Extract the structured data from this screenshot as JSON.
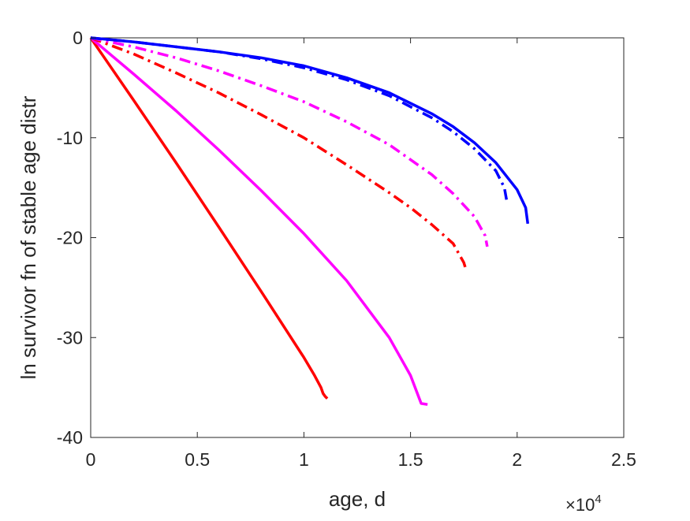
{
  "chart_data": {
    "type": "line",
    "title": "",
    "xlabel": "age, d",
    "ylabel": "ln survivor fn of stable age distr",
    "x_exponent_label": "×10",
    "x_exponent_power": "4",
    "xlim": [
      0,
      25000
    ],
    "ylim": [
      -40,
      0
    ],
    "xticks": [
      0,
      5000,
      10000,
      15000,
      20000,
      25000
    ],
    "xtick_labels": [
      "0",
      "0.5",
      "1",
      "1.5",
      "2",
      "2.5"
    ],
    "yticks": [
      0,
      -10,
      -20,
      -30,
      -40
    ],
    "ytick_labels": [
      "0",
      "-10",
      "-20",
      "-30",
      "-40"
    ],
    "grid": false,
    "legend": "none",
    "series": [
      {
        "color": "#ff0000",
        "style": "solid",
        "points": [
          [
            0,
            0
          ],
          [
            2000,
            -6.2
          ],
          [
            4000,
            -12.5
          ],
          [
            6000,
            -18.9
          ],
          [
            8000,
            -25.4
          ],
          [
            10000,
            -32.0
          ],
          [
            10500,
            -33.8
          ],
          [
            10800,
            -35.0
          ],
          [
            10900,
            -35.6
          ],
          [
            11000,
            -35.9
          ],
          [
            11100,
            -36.1
          ]
        ]
      },
      {
        "color": "#ff00ff",
        "style": "solid",
        "points": [
          [
            0,
            0
          ],
          [
            2000,
            -3.6
          ],
          [
            4000,
            -7.3
          ],
          [
            6000,
            -11.2
          ],
          [
            8000,
            -15.3
          ],
          [
            10000,
            -19.6
          ],
          [
            12000,
            -24.3
          ],
          [
            14000,
            -30.0
          ],
          [
            15000,
            -33.8
          ],
          [
            15500,
            -36.6
          ],
          [
            15800,
            -36.7
          ]
        ]
      },
      {
        "color": "#ff0000",
        "style": "dashdot",
        "points": [
          [
            0,
            0
          ],
          [
            2000,
            -1.6
          ],
          [
            4000,
            -3.5
          ],
          [
            6000,
            -5.5
          ],
          [
            8000,
            -7.7
          ],
          [
            10000,
            -10.0
          ],
          [
            12000,
            -12.7
          ],
          [
            14000,
            -15.5
          ],
          [
            15000,
            -17.0
          ],
          [
            16000,
            -18.7
          ],
          [
            17000,
            -20.6
          ],
          [
            17500,
            -22.5
          ],
          [
            17600,
            -23.2
          ]
        ]
      },
      {
        "color": "#ff00ff",
        "style": "dashdot",
        "points": [
          [
            0,
            0
          ],
          [
            2000,
            -0.9
          ],
          [
            4000,
            -2.0
          ],
          [
            6000,
            -3.3
          ],
          [
            8000,
            -4.8
          ],
          [
            10000,
            -6.4
          ],
          [
            12000,
            -8.4
          ],
          [
            14000,
            -10.7
          ],
          [
            16000,
            -13.7
          ],
          [
            17000,
            -15.6
          ],
          [
            18000,
            -17.9
          ],
          [
            18500,
            -19.8
          ],
          [
            18600,
            -20.9
          ]
        ]
      },
      {
        "color": "#0000ff",
        "style": "dashdot",
        "points": [
          [
            0,
            0
          ],
          [
            2000,
            -0.4
          ],
          [
            4000,
            -0.9
          ],
          [
            6000,
            -1.4
          ],
          [
            8000,
            -2.1
          ],
          [
            10000,
            -3.0
          ],
          [
            12000,
            -4.2
          ],
          [
            14000,
            -5.8
          ],
          [
            16000,
            -8.0
          ],
          [
            17000,
            -9.4
          ],
          [
            18000,
            -11.1
          ],
          [
            19000,
            -13.3
          ],
          [
            19400,
            -15.0
          ],
          [
            19500,
            -16.2
          ]
        ]
      },
      {
        "color": "#0000ff",
        "style": "solid",
        "points": [
          [
            0,
            0
          ],
          [
            2000,
            -0.4
          ],
          [
            4000,
            -0.9
          ],
          [
            6000,
            -1.4
          ],
          [
            8000,
            -2.0
          ],
          [
            10000,
            -2.8
          ],
          [
            12000,
            -4.0
          ],
          [
            14000,
            -5.5
          ],
          [
            16000,
            -7.6
          ],
          [
            17000,
            -8.9
          ],
          [
            18000,
            -10.5
          ],
          [
            19000,
            -12.5
          ],
          [
            20000,
            -15.2
          ],
          [
            20400,
            -17.0
          ],
          [
            20500,
            -18.6
          ]
        ]
      }
    ]
  }
}
